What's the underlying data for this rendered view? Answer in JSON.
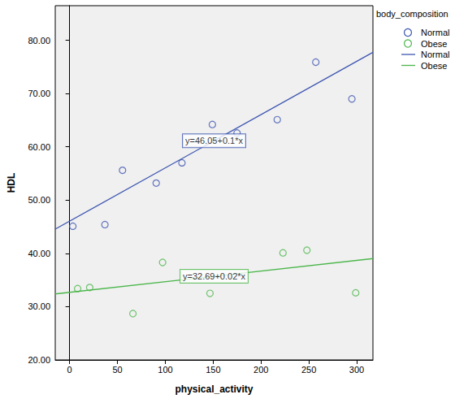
{
  "chart_data": {
    "type": "scatter",
    "x_label": "physical_activity",
    "y_label": "HDL",
    "xlim": [
      -15,
      317
    ],
    "xticks": [
      0,
      50,
      100,
      150,
      200,
      250,
      300
    ],
    "ylim": [
      20,
      86.5
    ],
    "yticks": [
      {
        "value": 20,
        "label": "20.00"
      },
      {
        "value": 30,
        "label": "30.00"
      },
      {
        "value": 40,
        "label": "40.00"
      },
      {
        "value": 50,
        "label": "50.00"
      },
      {
        "value": 60,
        "label": "60.00"
      },
      {
        "value": 70,
        "label": "70.00"
      },
      {
        "value": 80,
        "label": "80.00"
      }
    ],
    "grid": false,
    "legend": "right",
    "legend_title": "body_composition",
    "series": [
      {
        "name": "Normal",
        "color": "#3d55b0",
        "marker": "circle",
        "line_style": "solid",
        "x": [
          3.4,
          36.9,
          55.3,
          90.5,
          117.4,
          149.2,
          175,
          217,
          257.3,
          295
        ],
        "values": [
          45.1,
          45.4,
          55.6,
          53.2,
          57.0,
          64.2,
          62.6,
          65.1,
          75.9,
          69.0
        ],
        "fit": {
          "intercept": 46.05,
          "slope": 0.1,
          "label": "y=46.05+0.1*x"
        }
      },
      {
        "name": "Obese",
        "color": "#4bb64b",
        "marker": "circle",
        "line_style": "solid",
        "x": [
          8.4,
          21,
          66.2,
          97.2,
          146.7,
          223,
          248,
          299
        ],
        "values": [
          33.4,
          33.6,
          28.7,
          38.3,
          32.5,
          40.1,
          40.6,
          32.6
        ],
        "fit": {
          "intercept": 32.69,
          "slope": 0.02,
          "label": "y=32.69+0.02*x"
        }
      }
    ]
  }
}
